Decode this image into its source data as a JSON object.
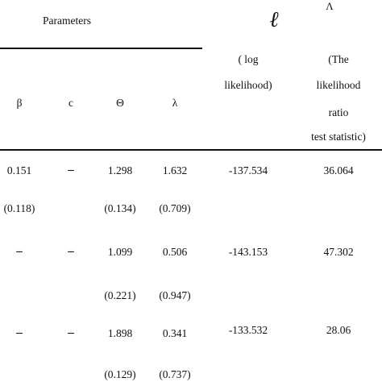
{
  "header": {
    "parameters_label": "Parameters",
    "loglik_symbol": "ℓ",
    "lr_symbol": "Λ",
    "loglik_desc": [
      "( log",
      "likelihood)"
    ],
    "lr_desc": [
      "(The",
      "likelihood",
      "ratio",
      "test statistic)"
    ],
    "columns": [
      "β",
      "c",
      "Θ",
      "λ"
    ]
  },
  "rows": [
    {
      "estimates": [
        "0.151",
        "–",
        "1.298",
        "1.632"
      ],
      "std_errors": [
        "(0.118)",
        "",
        "(0.134)",
        "(0.709)"
      ],
      "loglik": "-137.534",
      "lr": "36.064"
    },
    {
      "estimates": [
        "–",
        "–",
        "1.099",
        "0.506"
      ],
      "std_errors": [
        "",
        "",
        "(0.221)",
        "(0.947)"
      ],
      "loglik": "-143.153",
      "lr": "47.302"
    },
    {
      "estimates": [
        "–",
        "–",
        "1.898",
        "0.341"
      ],
      "std_errors": [
        "",
        "",
        "(0.129)",
        "(0.737)"
      ],
      "loglik": "-133.532",
      "lr": "28.06"
    }
  ]
}
